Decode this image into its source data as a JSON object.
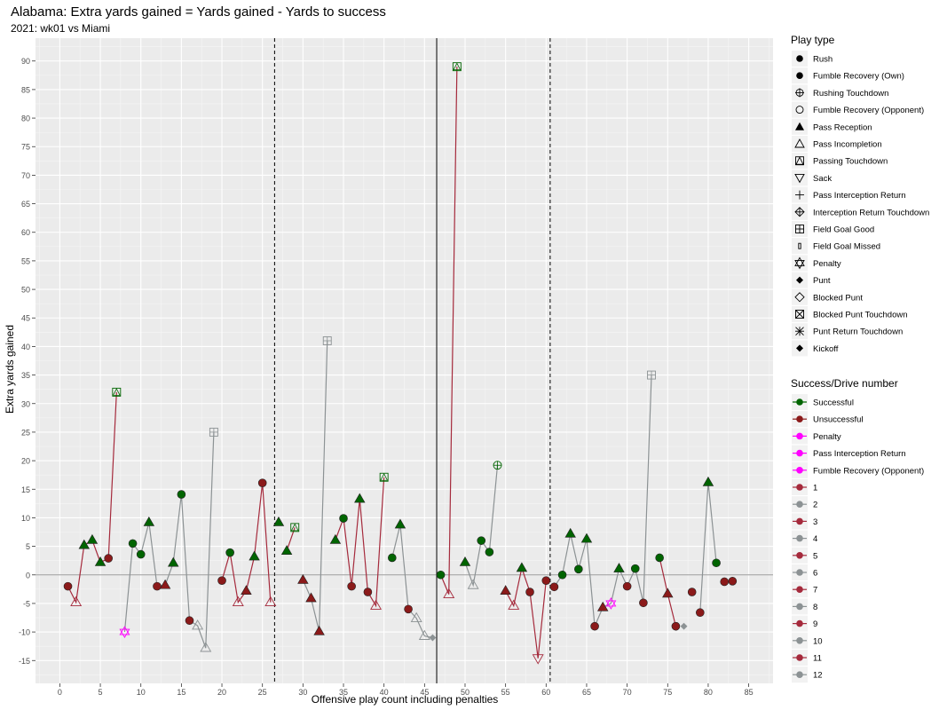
{
  "chart_data": {
    "type": "scatter",
    "title": "Alabama: Extra yards gained = Yards gained - Yards to success",
    "subtitle": "2021: wk01 vs Miami",
    "xlabel": "Offensive play count including penalties",
    "ylabel": "Extra yards gained",
    "xlim": [
      -3,
      88
    ],
    "ylim": [
      -19,
      94
    ],
    "x_ticks": [
      0,
      5,
      10,
      15,
      20,
      25,
      30,
      35,
      40,
      45,
      50,
      55,
      60,
      65,
      70,
      75,
      80,
      85
    ],
    "y_ticks": [
      -15,
      -10,
      -5,
      0,
      5,
      10,
      15,
      20,
      25,
      30,
      35,
      40,
      45,
      50,
      55,
      60,
      65,
      70,
      75,
      80,
      85,
      90
    ],
    "grid": true,
    "hline": 0,
    "vlines": [
      {
        "x": 26.5,
        "style": "dashed"
      },
      {
        "x": 46.5,
        "style": "solid"
      },
      {
        "x": 60.5,
        "style": "dashed"
      }
    ],
    "colors": {
      "successful": "#006400",
      "unsuccessful": "#8b1a1a",
      "penalty": "#ff00ff",
      "drive_odd": "#a52a3c",
      "drive_even": "#8c9294"
    },
    "drives": [
      {
        "drive": 1,
        "color": "#a52a3c",
        "plays": [
          {
            "x": 1,
            "y": -2,
            "shape": "circle",
            "status": "unsuccessful"
          },
          {
            "x": 2,
            "y": -4.8,
            "shape": "triangle_open",
            "status": "incomplete"
          },
          {
            "x": 3,
            "y": 5.2,
            "shape": "triangle",
            "status": "successful"
          },
          {
            "x": 4,
            "y": 6.1,
            "shape": "triangle",
            "status": "successful"
          },
          {
            "x": 5,
            "y": 2.2,
            "shape": "triangle",
            "status": "successful"
          },
          {
            "x": 6,
            "y": 2.9,
            "shape": "circle",
            "status": "unsuccessful"
          },
          {
            "x": 7,
            "y": 32,
            "shape": "pass_td",
            "status": "successful"
          }
        ]
      },
      {
        "drive": 2,
        "color": "#8c9294",
        "plays": [
          {
            "x": 8,
            "y": -10,
            "shape": "penalty",
            "status": "penalty"
          },
          {
            "x": 9,
            "y": 5.5,
            "shape": "circle",
            "status": "successful"
          },
          {
            "x": 10,
            "y": 3.6,
            "shape": "circle",
            "status": "successful"
          },
          {
            "x": 11,
            "y": 9.2,
            "shape": "triangle",
            "status": "successful"
          },
          {
            "x": 12,
            "y": -2,
            "shape": "circle",
            "status": "unsuccessful"
          },
          {
            "x": 13,
            "y": -1.8,
            "shape": "triangle",
            "status": "unsuccessful"
          },
          {
            "x": 14,
            "y": 2.1,
            "shape": "triangle",
            "status": "successful"
          },
          {
            "x": 15,
            "y": 14.1,
            "shape": "circle",
            "status": "successful"
          },
          {
            "x": 16,
            "y": -8,
            "shape": "circle",
            "status": "unsuccessful"
          },
          {
            "x": 17,
            "y": -8.9,
            "shape": "triangle_open",
            "status": "incomplete"
          },
          {
            "x": 18,
            "y": -12.8,
            "shape": "triangle_open",
            "status": "incomplete"
          },
          {
            "x": 19,
            "y": 25,
            "shape": "fg_good",
            "status": "field_goal"
          }
        ]
      },
      {
        "drive": 3,
        "color": "#a52a3c",
        "plays": [
          {
            "x": 20,
            "y": -1,
            "shape": "circle",
            "status": "unsuccessful"
          },
          {
            "x": 21,
            "y": 3.9,
            "shape": "circle",
            "status": "successful"
          },
          {
            "x": 22,
            "y": -4.8,
            "shape": "triangle_open",
            "status": "incomplete"
          },
          {
            "x": 23,
            "y": -2.8,
            "shape": "triangle",
            "status": "unsuccessful"
          },
          {
            "x": 24,
            "y": 3.2,
            "shape": "triangle",
            "status": "successful"
          },
          {
            "x": 25,
            "y": 16.1,
            "shape": "circle",
            "status": "unsuccessful"
          },
          {
            "x": 26,
            "y": -4.8,
            "shape": "triangle_open",
            "status": "incomplete"
          }
        ]
      },
      {
        "drive": 4,
        "color": "#8c9294",
        "plays": [
          {
            "x": 27,
            "y": 9.2,
            "shape": "triangle",
            "status": "successful"
          }
        ]
      },
      {
        "drive": 5,
        "color": "#a52a3c",
        "plays": [
          {
            "x": 28,
            "y": 4.2,
            "shape": "triangle",
            "status": "successful"
          },
          {
            "x": 29,
            "y": 8.3,
            "shape": "pass_td",
            "status": "successful"
          }
        ]
      },
      {
        "drive": 6,
        "color": "#8c9294",
        "plays": [
          {
            "x": 30,
            "y": -0.9,
            "shape": "triangle",
            "status": "unsuccessful"
          },
          {
            "x": 31,
            "y": -4.1,
            "shape": "triangle",
            "status": "unsuccessful"
          },
          {
            "x": 32,
            "y": -9.9,
            "shape": "triangle",
            "status": "unsuccessful"
          },
          {
            "x": 33,
            "y": 41,
            "shape": "fg_good",
            "status": "field_goal"
          }
        ]
      },
      {
        "drive": 7,
        "color": "#a52a3c",
        "plays": [
          {
            "x": 34,
            "y": 6.1,
            "shape": "triangle",
            "status": "successful"
          },
          {
            "x": 35,
            "y": 9.9,
            "shape": "circle",
            "status": "successful"
          },
          {
            "x": 36,
            "y": -2,
            "shape": "circle",
            "status": "unsuccessful"
          },
          {
            "x": 37,
            "y": 13.3,
            "shape": "triangle",
            "status": "successful"
          },
          {
            "x": 38,
            "y": -3,
            "shape": "circle",
            "status": "unsuccessful"
          },
          {
            "x": 39,
            "y": -5.4,
            "shape": "triangle_open",
            "status": "incomplete"
          },
          {
            "x": 40,
            "y": 17.1,
            "shape": "pass_td",
            "status": "successful"
          }
        ]
      },
      {
        "drive": 8,
        "color": "#8c9294",
        "plays": [
          {
            "x": 41,
            "y": 3,
            "shape": "circle",
            "status": "successful"
          },
          {
            "x": 42,
            "y": 8.8,
            "shape": "triangle",
            "status": "successful"
          },
          {
            "x": 43,
            "y": -6,
            "shape": "circle",
            "status": "unsuccessful"
          },
          {
            "x": 44,
            "y": -7.6,
            "shape": "triangle_open",
            "status": "incomplete"
          },
          {
            "x": 45,
            "y": -10.7,
            "shape": "triangle_open",
            "status": "incomplete"
          },
          {
            "x": 46,
            "y": -11,
            "shape": "punt",
            "status": "punt"
          }
        ]
      },
      {
        "drive": 9,
        "color": "#a52a3c",
        "plays": [
          {
            "x": 47,
            "y": 0,
            "shape": "circle",
            "status": "successful"
          },
          {
            "x": 48,
            "y": -3.4,
            "shape": "triangle_open",
            "status": "incomplete"
          },
          {
            "x": 49,
            "y": 89,
            "shape": "pass_td",
            "status": "successful"
          }
        ]
      },
      {
        "drive": 10,
        "color": "#8c9294",
        "plays": [
          {
            "x": 50,
            "y": 2.2,
            "shape": "triangle",
            "status": "successful"
          },
          {
            "x": 51,
            "y": -1.8,
            "shape": "triangle_open",
            "status": "incomplete"
          },
          {
            "x": 52,
            "y": 6,
            "shape": "circle",
            "status": "successful"
          },
          {
            "x": 53,
            "y": 4,
            "shape": "circle",
            "status": "successful"
          },
          {
            "x": 54,
            "y": 19.2,
            "shape": "rush_td",
            "status": "successful"
          }
        ]
      },
      {
        "drive": 11,
        "color": "#a52a3c",
        "plays": [
          {
            "x": 55,
            "y": -2.8,
            "shape": "triangle",
            "status": "unsuccessful"
          },
          {
            "x": 56,
            "y": -5.4,
            "shape": "triangle_open",
            "status": "incomplete"
          },
          {
            "x": 57,
            "y": 1.2,
            "shape": "triangle",
            "status": "successful"
          },
          {
            "x": 58,
            "y": -3,
            "shape": "circle",
            "status": "unsuccessful"
          },
          {
            "x": 59,
            "y": -14.6,
            "shape": "sack",
            "status": "sack"
          },
          {
            "x": 60,
            "y": -1,
            "shape": "circle",
            "status": "unsuccessful"
          }
        ]
      },
      {
        "drive": 12,
        "color": "#8c9294",
        "plays": [
          {
            "x": 61,
            "y": -2.1,
            "shape": "circle",
            "status": "unsuccessful"
          },
          {
            "x": 62,
            "y": 0,
            "shape": "circle",
            "status": "successful"
          },
          {
            "x": 63,
            "y": 7.2,
            "shape": "triangle",
            "status": "successful"
          },
          {
            "x": 64,
            "y": 1,
            "shape": "circle",
            "status": "successful"
          },
          {
            "x": 65,
            "y": 6.3,
            "shape": "triangle",
            "status": "successful"
          },
          {
            "x": 66,
            "y": -9,
            "shape": "circle",
            "status": "unsuccessful"
          },
          {
            "x": 67,
            "y": -5.7,
            "shape": "triangle",
            "status": "unsuccessful"
          },
          {
            "x": 68,
            "y": -5,
            "shape": "penalty",
            "status": "penalty"
          },
          {
            "x": 69,
            "y": 1.1,
            "shape": "triangle",
            "status": "successful"
          },
          {
            "x": 70,
            "y": -2,
            "shape": "circle",
            "status": "unsuccessful"
          },
          {
            "x": 71,
            "y": 1.1,
            "shape": "circle",
            "status": "successful"
          },
          {
            "x": 72,
            "y": -4.9,
            "shape": "circle",
            "status": "unsuccessful"
          },
          {
            "x": 73,
            "y": 35,
            "shape": "fg_good",
            "status": "field_goal"
          }
        ]
      },
      {
        "drive": 13,
        "color": "#a52a3c",
        "plays": [
          {
            "x": 74,
            "y": 3,
            "shape": "circle",
            "status": "successful"
          },
          {
            "x": 75,
            "y": -3.3,
            "shape": "triangle",
            "status": "unsuccessful"
          },
          {
            "x": 76,
            "y": -9,
            "shape": "circle",
            "status": "unsuccessful"
          }
        ]
      },
      {
        "drive": 14,
        "color": "#8c9294",
        "plays": [
          {
            "x": 77,
            "y": -9,
            "shape": "punt",
            "status": "punt"
          }
        ]
      },
      {
        "drive": 15,
        "color": "#a52a3c",
        "plays": [
          {
            "x": 78,
            "y": -3,
            "shape": "circle",
            "status": "unsuccessful"
          }
        ]
      },
      {
        "drive": 16,
        "color": "#8c9294",
        "plays": [
          {
            "x": 79,
            "y": -6.6,
            "shape": "circle",
            "status": "unsuccessful"
          },
          {
            "x": 80,
            "y": 16.2,
            "shape": "triangle",
            "status": "successful"
          },
          {
            "x": 81,
            "y": 2.1,
            "shape": "circle",
            "status": "successful"
          }
        ]
      },
      {
        "drive": 17,
        "color": "#a52a3c",
        "plays": [
          {
            "x": 82,
            "y": -1.2,
            "shape": "circle",
            "status": "unsuccessful"
          },
          {
            "x": 83,
            "y": -1.1,
            "shape": "circle",
            "status": "unsuccessful"
          }
        ]
      }
    ],
    "legend_play_type": {
      "title": "Play type",
      "position": "right",
      "items": [
        {
          "label": "Rush",
          "icon": "filled-circle-icon"
        },
        {
          "label": "Fumble Recovery (Own)",
          "icon": "filled-circle-icon"
        },
        {
          "label": "Rushing Touchdown",
          "icon": "circle-plus-icon"
        },
        {
          "label": "Fumble Recovery (Opponent)",
          "icon": "open-circle-icon"
        },
        {
          "label": "Pass Reception",
          "icon": "filled-triangle-icon"
        },
        {
          "label": "Pass Incompletion",
          "icon": "open-triangle-icon"
        },
        {
          "label": "Passing Touchdown",
          "icon": "square-triangle-icon"
        },
        {
          "label": "Sack",
          "icon": "down-triangle-icon"
        },
        {
          "label": "Pass Interception Return",
          "icon": "plus-icon"
        },
        {
          "label": "Interception Return Touchdown",
          "icon": "diamond-plus-icon"
        },
        {
          "label": "Field Goal Good",
          "icon": "square-plus-icon"
        },
        {
          "label": "Field Goal Missed",
          "icon": "small-rect-icon"
        },
        {
          "label": "Penalty",
          "icon": "star-of-david-icon"
        },
        {
          "label": "Punt",
          "icon": "filled-diamond-icon"
        },
        {
          "label": "Blocked Punt",
          "icon": "open-diamond-icon"
        },
        {
          "label": "Blocked Punt Touchdown",
          "icon": "square-cross-icon"
        },
        {
          "label": "Punt Return Touchdown",
          "icon": "asterisk-icon"
        },
        {
          "label": "Kickoff",
          "icon": "filled-diamond-icon"
        }
      ]
    },
    "legend_success": {
      "title": "Success/Drive number",
      "position": "right",
      "items": [
        {
          "label": "Successful",
          "color": "#006400"
        },
        {
          "label": "Unsuccessful",
          "color": "#8b1a1a"
        },
        {
          "label": "Penalty",
          "color": "#ff00ff"
        },
        {
          "label": "Pass Interception Return",
          "color": "#ff00ff"
        },
        {
          "label": "Fumble Recovery (Opponent)",
          "color": "#ff00ff"
        },
        {
          "label": "1",
          "color": "#a52a3c"
        },
        {
          "label": "2",
          "color": "#8c9294"
        },
        {
          "label": "3",
          "color": "#a52a3c"
        },
        {
          "label": "4",
          "color": "#8c9294"
        },
        {
          "label": "5",
          "color": "#a52a3c"
        },
        {
          "label": "6",
          "color": "#8c9294"
        },
        {
          "label": "7",
          "color": "#a52a3c"
        },
        {
          "label": "8",
          "color": "#8c9294"
        },
        {
          "label": "9",
          "color": "#a52a3c"
        },
        {
          "label": "10",
          "color": "#8c9294"
        },
        {
          "label": "11",
          "color": "#a52a3c"
        },
        {
          "label": "12",
          "color": "#8c9294"
        }
      ]
    }
  }
}
